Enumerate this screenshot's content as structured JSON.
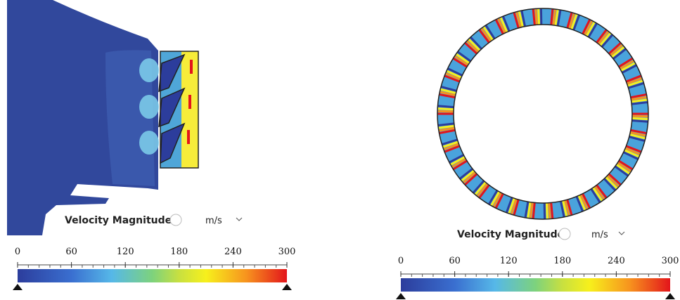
{
  "panels": [
    {
      "legend": {
        "title": "Velocity Magnitude",
        "unit": "m/s",
        "range": [
          0,
          300
        ],
        "ticks": [
          0,
          60,
          120,
          180,
          240,
          300
        ]
      }
    },
    {
      "legend": {
        "title": "Velocity Magnitude",
        "unit": "m/s",
        "range": [
          0,
          300
        ],
        "ticks": [
          0,
          60,
          120,
          180,
          240,
          300
        ]
      }
    }
  ]
}
